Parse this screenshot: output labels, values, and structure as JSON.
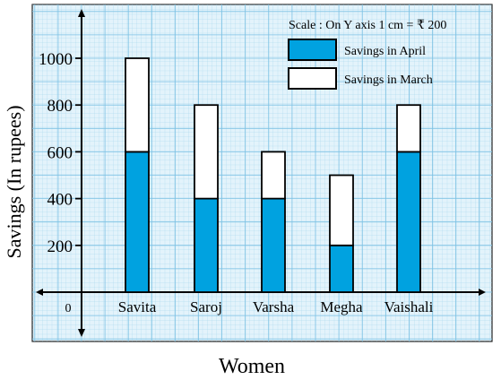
{
  "chart_data": {
    "type": "bar",
    "stacked": true,
    "categories": [
      "Savita",
      "Saroj",
      "Varsha",
      "Megha",
      "Vaishali"
    ],
    "series": [
      {
        "name": "Savings in April",
        "values": [
          600,
          400,
          400,
          200,
          600
        ],
        "color": "#00a2e0"
      },
      {
        "name": "Savings in March",
        "values": [
          400,
          400,
          200,
          300,
          200
        ],
        "color": "#ffffff"
      }
    ],
    "xlabel": "Women",
    "ylabel": "Savings (In rupees)",
    "yticks": [
      200,
      400,
      600,
      800,
      1000
    ],
    "origin_label": "0",
    "ylim": [
      0,
      1000
    ],
    "grid": true,
    "scale_note": "Scale : On Y axis 1 cm = ₹ 200",
    "legend_position": "top-right",
    "colors": {
      "grid": "#8ecbe8",
      "background": "#dff1fa",
      "axis": "#000000"
    }
  }
}
